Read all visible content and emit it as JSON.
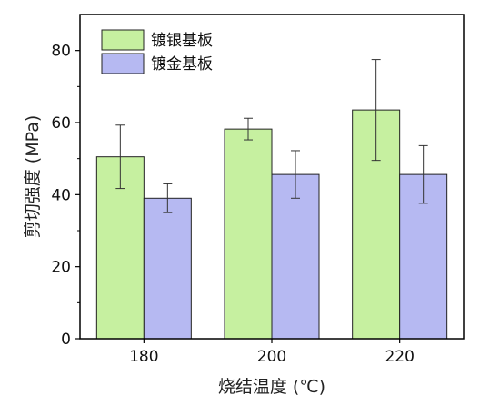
{
  "chart_data": {
    "type": "bar",
    "categories": [
      "180",
      "200",
      "220"
    ],
    "series": [
      {
        "name": "镀银基板",
        "values": [
          50.5,
          58.2,
          63.5
        ],
        "errors": [
          8.8,
          3.0,
          14.0
        ],
        "color": "#c6f0a0"
      },
      {
        "name": "镀金基板",
        "values": [
          39.0,
          45.6,
          45.6
        ],
        "errors": [
          4.0,
          6.6,
          8.0
        ],
        "color": "#b6b9f2"
      }
    ],
    "title": "",
    "xlabel": "烧结温度 (℃)",
    "ylabel": "剪切强度 (MPa)",
    "ylim": [
      0,
      90
    ],
    "yticks": [
      0,
      20,
      40,
      60,
      80
    ],
    "grid": false,
    "legend_position": "top-left",
    "error_bars": true
  }
}
